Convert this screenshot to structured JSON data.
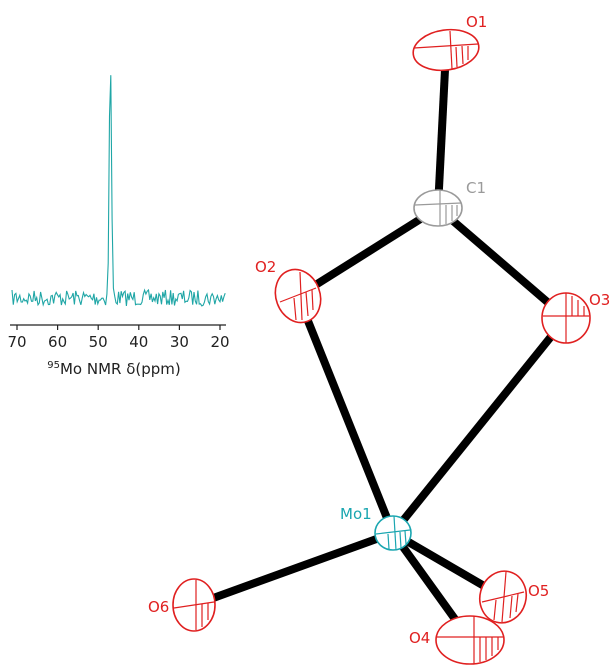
{
  "spectrum": {
    "axis_ticks": [
      "70",
      "60",
      "50",
      "40",
      "30",
      "20"
    ],
    "axis_title_superscript": "95",
    "axis_title_text": "Mo NMR δ(ppm)",
    "trace_color": "#1fa6a6"
  },
  "structure": {
    "atoms": [
      {
        "id": "O1",
        "label": "O1",
        "element": "O"
      },
      {
        "id": "C1",
        "label": "C1",
        "element": "C"
      },
      {
        "id": "O2",
        "label": "O2",
        "element": "O"
      },
      {
        "id": "O3",
        "label": "O3",
        "element": "O"
      },
      {
        "id": "Mo1",
        "label": "Mo1",
        "element": "Mo"
      },
      {
        "id": "O4",
        "label": "O4",
        "element": "O"
      },
      {
        "id": "O5",
        "label": "O5",
        "element": "O"
      },
      {
        "id": "O6",
        "label": "O6",
        "element": "O"
      }
    ],
    "bonds": [
      [
        "O1",
        "C1"
      ],
      [
        "C1",
        "O2"
      ],
      [
        "C1",
        "O3"
      ],
      [
        "O2",
        "Mo1"
      ],
      [
        "O3",
        "Mo1"
      ],
      [
        "Mo1",
        "O4"
      ],
      [
        "Mo1",
        "O5"
      ],
      [
        "Mo1",
        "O6"
      ]
    ],
    "element_colors": {
      "O": "#e02020",
      "C": "#9a9a9a",
      "Mo": "#1aa6b0"
    }
  }
}
